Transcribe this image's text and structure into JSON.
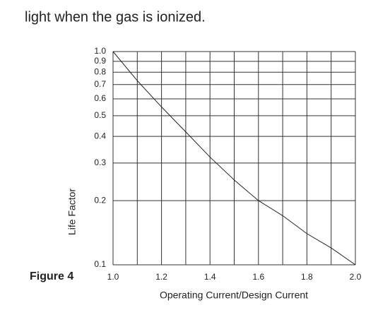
{
  "body_text": "light when the gas is ionized.",
  "chart_data": {
    "type": "line",
    "figure_label": "Figure 4",
    "xlabel": "Operating Current/Design Current",
    "ylabel": "Life Factor",
    "x": [
      1.0,
      1.1,
      1.2,
      1.3,
      1.4,
      1.5,
      1.6,
      1.7,
      1.8,
      1.9,
      2.0
    ],
    "series": [
      {
        "color": "#222222",
        "values": [
          1.0,
          0.73,
          0.55,
          0.42,
          0.32,
          0.25,
          0.2,
          0.17,
          0.14,
          0.12,
          0.1
        ]
      }
    ],
    "xlim": [
      1.0,
      2.0
    ],
    "xticks": [
      {
        "value": 1.0,
        "label": "1.0"
      },
      1.2,
      1.4,
      1.6,
      1.8,
      {
        "value": 2.0,
        "label": "2.0"
      }
    ],
    "xgrid": [
      1.1,
      1.3,
      1.5,
      1.7,
      1.9
    ],
    "ylim": [
      0.1,
      1.0
    ],
    "ylog": true,
    "yticks": [
      0.1,
      0.2,
      0.3,
      0.4,
      0.5,
      0.6,
      0.7,
      0.8,
      0.9,
      {
        "value": 1.0,
        "label": "1.0"
      }
    ],
    "grid": true
  }
}
